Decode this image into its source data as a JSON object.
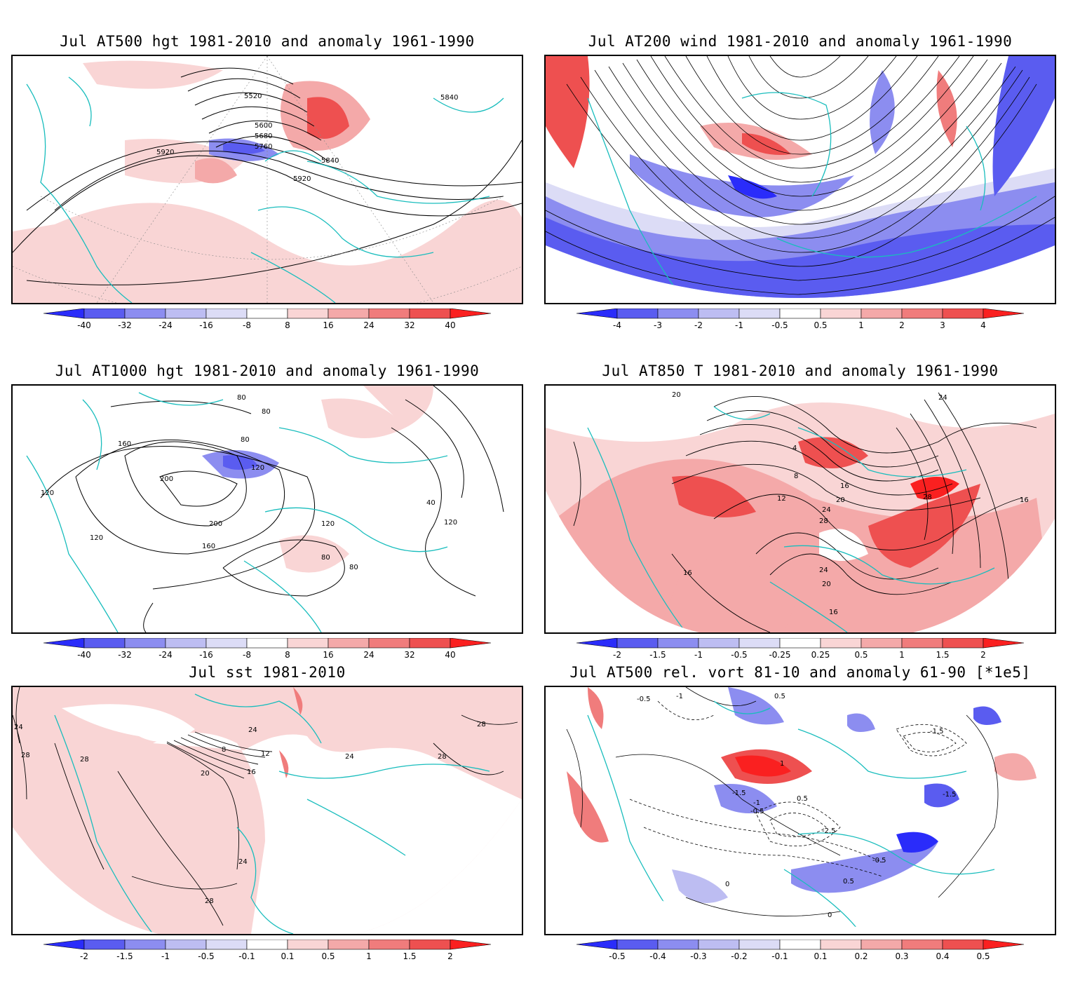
{
  "palette": {
    "neg": [
      "#2a2cfa",
      "#5a5cf0",
      "#8c8df0",
      "#bdbdf2",
      "#dcdcf6"
    ],
    "pos": [
      "#f9d5d5",
      "#f4a9a9",
      "#f07c7c",
      "#ee5050",
      "#fa2020"
    ],
    "coast": "#19bdbd",
    "contour": "#000000"
  },
  "panels": [
    {
      "id": "p1",
      "title": "Jul AT500 hgt 1981-2010 and anomaly 1961-1990",
      "colorbar_labels": [
        "-40",
        "-32",
        "-24",
        "-16",
        "-8",
        "8",
        "16",
        "24",
        "32",
        "40"
      ],
      "contour_labels": [
        "5520",
        "5600",
        "5680",
        "5760",
        "5840",
        "5840",
        "5920",
        "5920"
      ],
      "map_type": "height"
    },
    {
      "id": "p2",
      "title": "Jul AT200 wind 1981-2010 and anomaly 1961-1990",
      "colorbar_labels": [
        "-4",
        "-3",
        "-2",
        "-1",
        "-0.5",
        "0.5",
        "1",
        "2",
        "3",
        "4"
      ],
      "contour_labels": [],
      "map_type": "wind"
    },
    {
      "id": "p3",
      "title": "Jul AT1000 hgt 1981-2010 and anomaly 1961-1990",
      "colorbar_labels": [
        "-40",
        "-32",
        "-24",
        "-16",
        "-8",
        "8",
        "16",
        "24",
        "32",
        "40"
      ],
      "contour_labels": [
        "80",
        "80",
        "80",
        "120",
        "160",
        "200",
        "200",
        "160",
        "120",
        "120",
        "120",
        "80",
        "80",
        "40",
        "120"
      ],
      "map_type": "height"
    },
    {
      "id": "p4",
      "title": "Jul AT850 T 1981-2010 and anomaly 1961-1990",
      "colorbar_labels": [
        "-2",
        "-1.5",
        "-1",
        "-0.5",
        "-0.25",
        "0.25",
        "0.5",
        "1",
        "1.5",
        "2"
      ],
      "contour_labels": [
        "20",
        "4",
        "8",
        "12",
        "16",
        "20",
        "24",
        "28",
        "28",
        "16",
        "24",
        "20",
        "16",
        "16",
        "24"
      ],
      "map_type": "temperature"
    },
    {
      "id": "p5",
      "title": "Jul sst 1981-2010",
      "colorbar_labels": [
        "-2",
        "-1.5",
        "-1",
        "-0.5",
        "-0.1",
        "0.1",
        "0.5",
        "1",
        "1.5",
        "2"
      ],
      "contour_labels": [
        "24",
        "28",
        "28",
        "24",
        "20",
        "16",
        "12",
        "8",
        "24",
        "28",
        "28",
        "24",
        "28"
      ],
      "map_type": "sst"
    },
    {
      "id": "p6",
      "title": "Jul AT500 rel. vort 81-10 and anomaly 61-90 [*1e5]",
      "colorbar_labels": [
        "-0.5",
        "-0.4",
        "-0.3",
        "-0.2",
        "-0.1",
        "0.1",
        "0.2",
        "0.3",
        "0.4",
        "0.5"
      ],
      "contour_labels": [
        "-0.5",
        "-1",
        "0.5",
        "1",
        "-1.5",
        "-1",
        "-0.5",
        "0.5",
        "-2.5",
        "-1.5",
        "-0.5",
        "0.5",
        "0",
        "0",
        "-1.5"
      ],
      "map_type": "vorticity"
    }
  ]
}
